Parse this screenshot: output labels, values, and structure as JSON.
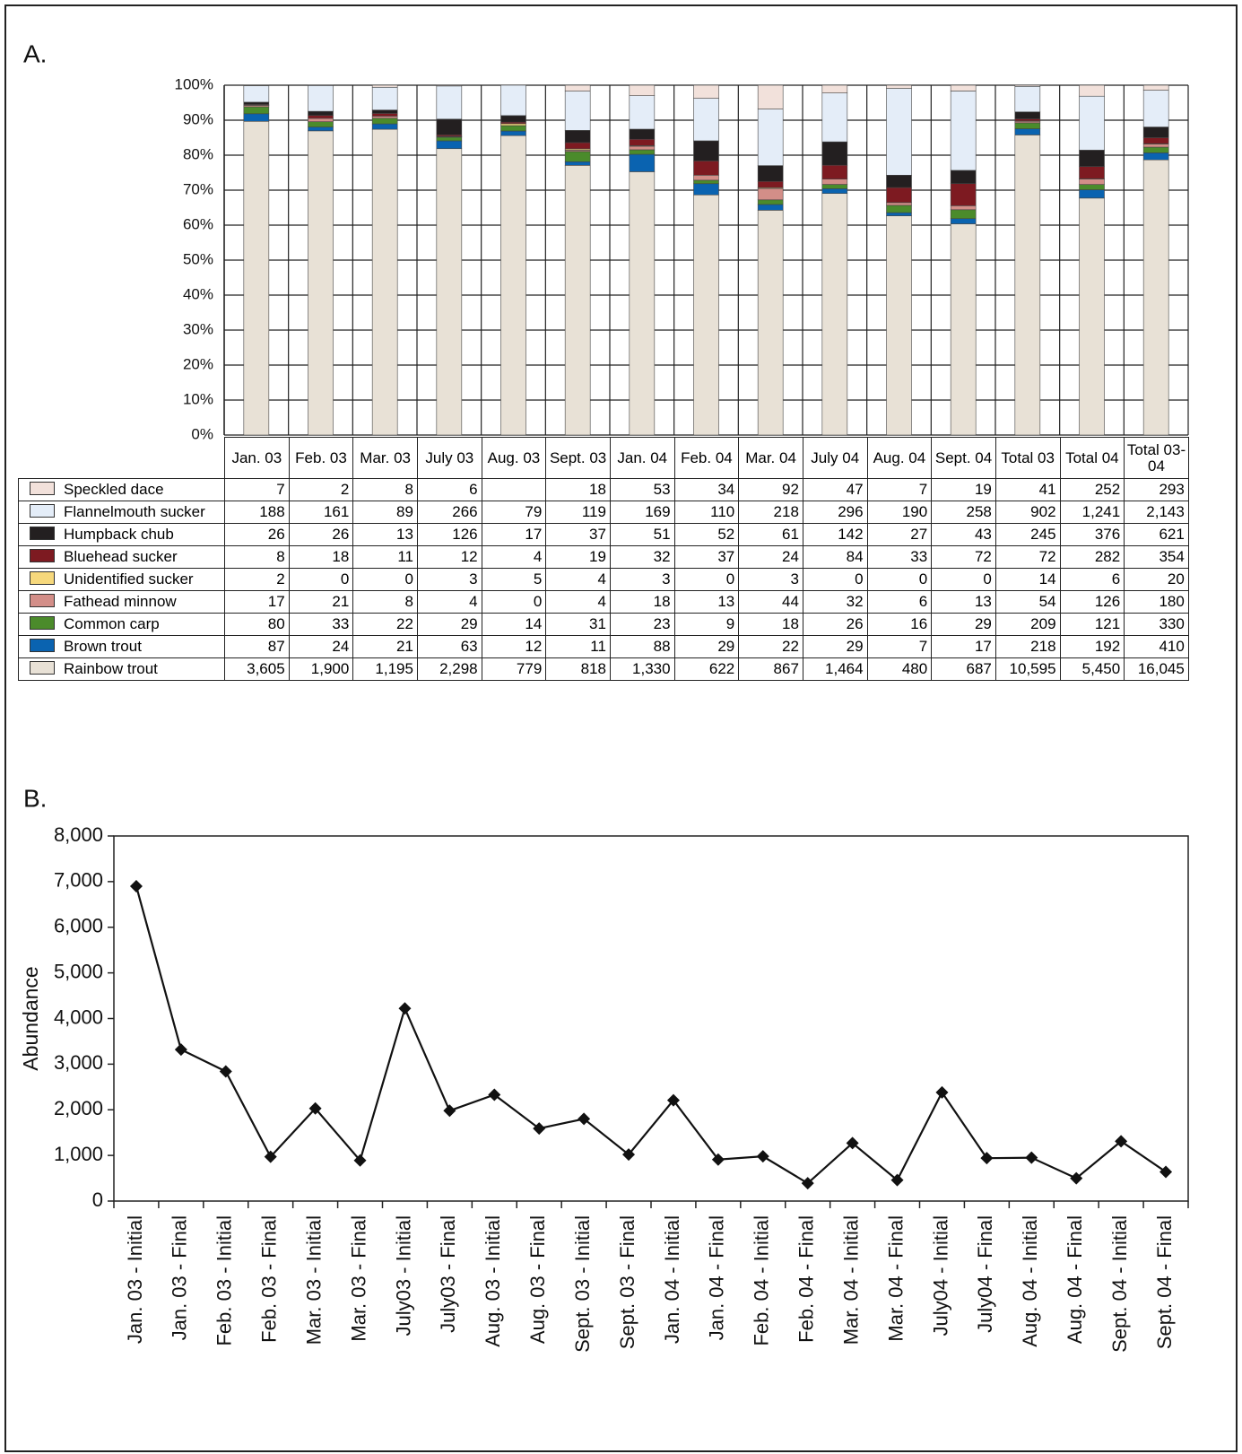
{
  "chart_data": [
    {
      "type": "bar",
      "panel": "A.",
      "stacked": true,
      "normalized": true,
      "categories": [
        "Jan. 03",
        "Feb. 03",
        "Mar. 03",
        "July 03",
        "Aug. 03",
        "Sept. 03",
        "Jan. 04",
        "Feb. 04",
        "Mar. 04",
        "July 04",
        "Aug. 04",
        "Sept. 04",
        "Total 03",
        "Total 04",
        "Total 03-04"
      ],
      "ylim": [
        0,
        100
      ],
      "yticks": [
        {
          "value": 0,
          "label": "0%"
        },
        {
          "value": 10,
          "label": "10%"
        },
        {
          "value": 20,
          "label": "20%"
        },
        {
          "value": 30,
          "label": "30%"
        },
        {
          "value": 40,
          "label": "40%"
        },
        {
          "value": 50,
          "label": "50%"
        },
        {
          "value": 60,
          "label": "60%"
        },
        {
          "value": 70,
          "label": "70%"
        },
        {
          "value": 80,
          "label": "80%"
        },
        {
          "value": 90,
          "label": "90%"
        },
        {
          "value": 100,
          "label": "100%"
        }
      ],
      "grid": true,
      "series": [
        {
          "name": "Speckled dace",
          "color": "#f2e1db",
          "values": [
            7,
            2,
            8,
            6,
            null,
            18,
            53,
            34,
            92,
            47,
            7,
            19,
            41,
            252,
            293
          ]
        },
        {
          "name": "Flannelmouth sucker",
          "color": "#e4edf8",
          "values": [
            188,
            161,
            89,
            266,
            79,
            119,
            169,
            110,
            218,
            296,
            190,
            258,
            902,
            1241,
            2143
          ],
          "value_labels": [
            "188",
            "161",
            "89",
            "266",
            "79",
            "119",
            "169",
            "110",
            "218",
            "296",
            "190",
            "258",
            "902",
            "1,241",
            "2,143"
          ]
        },
        {
          "name": "Humpback chub",
          "color": "#231f20",
          "values": [
            26,
            26,
            13,
            126,
            17,
            37,
            51,
            52,
            61,
            142,
            27,
            43,
            245,
            376,
            621
          ]
        },
        {
          "name": "Bluehead sucker",
          "color": "#7d1a21",
          "values": [
            8,
            18,
            11,
            12,
            4,
            19,
            32,
            37,
            24,
            84,
            33,
            72,
            72,
            282,
            354
          ]
        },
        {
          "name": "Unidentified sucker",
          "color": "#f6d87c",
          "values": [
            2,
            0,
            0,
            3,
            5,
            4,
            3,
            0,
            3,
            0,
            0,
            0,
            14,
            6,
            20
          ]
        },
        {
          "name": "Fathead minnow",
          "color": "#d38e88",
          "values": [
            17,
            21,
            8,
            4,
            0,
            4,
            18,
            13,
            44,
            32,
            6,
            13,
            54,
            126,
            180
          ]
        },
        {
          "name": "Common carp",
          "color": "#4b8b2b",
          "values": [
            80,
            33,
            22,
            29,
            14,
            31,
            23,
            9,
            18,
            26,
            16,
            29,
            209,
            121,
            330
          ]
        },
        {
          "name": "Brown trout",
          "color": "#0a63b0",
          "values": [
            87,
            24,
            21,
            63,
            12,
            11,
            88,
            29,
            22,
            29,
            7,
            17,
            218,
            192,
            410
          ]
        },
        {
          "name": "Rainbow trout",
          "color": "#e8e1d6",
          "values": [
            3605,
            1900,
            1195,
            2298,
            779,
            818,
            1330,
            622,
            867,
            1464,
            480,
            687,
            10595,
            5450,
            16045
          ],
          "value_labels": [
            "3,605",
            "1,900",
            "1,195",
            "2,298",
            "779",
            "818",
            "1,330",
            "622",
            "867",
            "1,464",
            "480",
            "687",
            "10,595",
            "5,450",
            "16,045"
          ]
        }
      ]
    },
    {
      "type": "line",
      "panel": "B.",
      "y_label": "Abundance",
      "color": "#111111",
      "categories": [
        "Jan. 03 - Initial",
        "Jan. 03 - Final",
        "Feb. 03 - Initial",
        "Feb. 03 - Final",
        "Mar. 03 - Initial",
        "Mar. 03 - Final",
        "July03 - Initial",
        "July03 - Final",
        "Aug. 03 - Initial",
        "Aug. 03 - Final",
        "Sept. 03 - Initial",
        "Sept. 03 - Final",
        "Jan. 04 - Initial",
        "Jan. 04 - Final",
        "Feb. 04 - Initial",
        "Feb. 04 - Final",
        "Mar. 04 - Initial",
        "Mar. 04 - Final",
        "July04 - Initial",
        "July04 - Final",
        "Aug. 04 - Initial",
        "Aug. 04 - Final",
        "Sept. 04 - Initial",
        "Sept. 04 - Final"
      ],
      "values": [
        6900,
        3320,
        2840,
        970,
        2030,
        890,
        4220,
        1980,
        2330,
        1590,
        1800,
        1020,
        2210,
        910,
        980,
        390,
        1270,
        460,
        2380,
        940,
        950,
        500,
        1310,
        640
      ],
      "ylim": [
        0,
        8000
      ],
      "yticks": [
        0,
        {
          "value": 1000,
          "label": "1,000"
        },
        {
          "value": 2000,
          "label": "2,000"
        },
        {
          "value": 3000,
          "label": "3,000"
        },
        {
          "value": 4000,
          "label": "4,000"
        },
        {
          "value": 5000,
          "label": "5,000"
        },
        {
          "value": 6000,
          "label": "6,000"
        },
        {
          "value": 7000,
          "label": "7,000"
        },
        {
          "value": 8000,
          "label": "8,000"
        }
      ]
    }
  ]
}
